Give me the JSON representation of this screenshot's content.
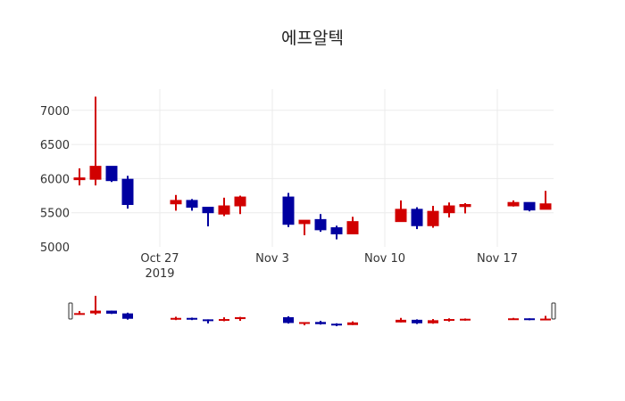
{
  "title": "에프알텍",
  "colors": {
    "increasing": "#d10000",
    "decreasing": "#0000a0",
    "grid": "#ebebeb",
    "text": "#333333"
  },
  "chart_data": {
    "type": "candlestick",
    "title": "에프알텍",
    "xlabel": "",
    "ylabel": "",
    "ylim": [
      4990,
      7320
    ],
    "yticks": [
      5000,
      5500,
      6000,
      6500,
      7000
    ],
    "xticks": [
      {
        "date": "2019-10-27",
        "label": "Oct 27",
        "sublabel": "2019"
      },
      {
        "date": "2019-11-03",
        "label": "Nov 3",
        "sublabel": ""
      },
      {
        "date": "2019-11-10",
        "label": "Nov 10",
        "sublabel": ""
      },
      {
        "date": "2019-11-17",
        "label": "Nov 17",
        "sublabel": ""
      }
    ],
    "grid": true,
    "rangeslider": true,
    "candles": [
      {
        "date": "2019-10-22",
        "open": 5990,
        "high": 6150,
        "low": 5900,
        "close": 6010
      },
      {
        "date": "2019-10-23",
        "open": 5990,
        "high": 7200,
        "low": 5900,
        "close": 6180
      },
      {
        "date": "2019-10-24",
        "open": 6180,
        "high": 6180,
        "low": 5950,
        "close": 5970
      },
      {
        "date": "2019-10-25",
        "open": 5990,
        "high": 6040,
        "low": 5560,
        "close": 5620
      },
      {
        "date": "2019-10-28",
        "open": 5630,
        "high": 5760,
        "low": 5530,
        "close": 5680
      },
      {
        "date": "2019-10-29",
        "open": 5680,
        "high": 5700,
        "low": 5530,
        "close": 5580
      },
      {
        "date": "2019-10-30",
        "open": 5580,
        "high": 5580,
        "low": 5300,
        "close": 5500
      },
      {
        "date": "2019-10-31",
        "open": 5480,
        "high": 5720,
        "low": 5450,
        "close": 5600
      },
      {
        "date": "2019-11-01",
        "open": 5600,
        "high": 5750,
        "low": 5480,
        "close": 5730
      },
      {
        "date": "2019-11-04",
        "open": 5730,
        "high": 5790,
        "low": 5290,
        "close": 5330
      },
      {
        "date": "2019-11-05",
        "open": 5340,
        "high": 5390,
        "low": 5170,
        "close": 5390
      },
      {
        "date": "2019-11-06",
        "open": 5400,
        "high": 5480,
        "low": 5220,
        "close": 5250
      },
      {
        "date": "2019-11-07",
        "open": 5280,
        "high": 5310,
        "low": 5110,
        "close": 5190
      },
      {
        "date": "2019-11-08",
        "open": 5190,
        "high": 5440,
        "low": 5190,
        "close": 5370
      },
      {
        "date": "2019-11-11",
        "open": 5370,
        "high": 5680,
        "low": 5370,
        "close": 5550
      },
      {
        "date": "2019-11-12",
        "open": 5550,
        "high": 5580,
        "low": 5260,
        "close": 5310
      },
      {
        "date": "2019-11-13",
        "open": 5310,
        "high": 5600,
        "low": 5280,
        "close": 5520
      },
      {
        "date": "2019-11-14",
        "open": 5500,
        "high": 5650,
        "low": 5430,
        "close": 5600
      },
      {
        "date": "2019-11-15",
        "open": 5590,
        "high": 5640,
        "low": 5490,
        "close": 5620
      },
      {
        "date": "2019-11-18",
        "open": 5600,
        "high": 5680,
        "low": 5590,
        "close": 5650
      },
      {
        "date": "2019-11-19",
        "open": 5650,
        "high": 5650,
        "low": 5520,
        "close": 5540
      },
      {
        "date": "2019-11-20",
        "open": 5550,
        "high": 5820,
        "low": 5550,
        "close": 5630
      }
    ]
  }
}
